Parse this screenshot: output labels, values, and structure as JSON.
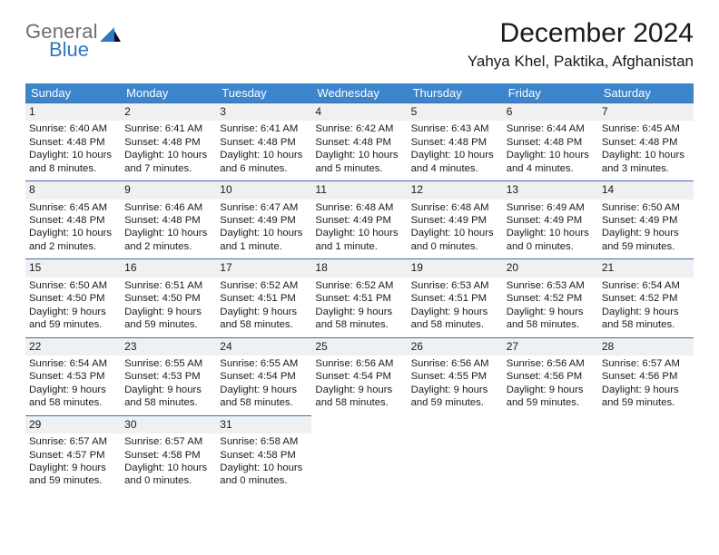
{
  "brand": {
    "line1": "General",
    "line2": "Blue"
  },
  "title": "December 2024",
  "location": "Yahya Khel, Paktika, Afghanistan",
  "colors": {
    "header_bg": "#3c84cc",
    "header_text": "#ffffff",
    "daynum_bg": "#eef0f1",
    "daynum_border": "#3c6fa3",
    "logo_blue": "#2f78c2",
    "logo_gray": "#6e6e6e"
  },
  "day_headers": [
    "Sunday",
    "Monday",
    "Tuesday",
    "Wednesday",
    "Thursday",
    "Friday",
    "Saturday"
  ],
  "days": [
    {
      "n": "1",
      "sunrise": "Sunrise: 6:40 AM",
      "sunset": "Sunset: 4:48 PM",
      "daylight": "Daylight: 10 hours and 8 minutes."
    },
    {
      "n": "2",
      "sunrise": "Sunrise: 6:41 AM",
      "sunset": "Sunset: 4:48 PM",
      "daylight": "Daylight: 10 hours and 7 minutes."
    },
    {
      "n": "3",
      "sunrise": "Sunrise: 6:41 AM",
      "sunset": "Sunset: 4:48 PM",
      "daylight": "Daylight: 10 hours and 6 minutes."
    },
    {
      "n": "4",
      "sunrise": "Sunrise: 6:42 AM",
      "sunset": "Sunset: 4:48 PM",
      "daylight": "Daylight: 10 hours and 5 minutes."
    },
    {
      "n": "5",
      "sunrise": "Sunrise: 6:43 AM",
      "sunset": "Sunset: 4:48 PM",
      "daylight": "Daylight: 10 hours and 4 minutes."
    },
    {
      "n": "6",
      "sunrise": "Sunrise: 6:44 AM",
      "sunset": "Sunset: 4:48 PM",
      "daylight": "Daylight: 10 hours and 4 minutes."
    },
    {
      "n": "7",
      "sunrise": "Sunrise: 6:45 AM",
      "sunset": "Sunset: 4:48 PM",
      "daylight": "Daylight: 10 hours and 3 minutes."
    },
    {
      "n": "8",
      "sunrise": "Sunrise: 6:45 AM",
      "sunset": "Sunset: 4:48 PM",
      "daylight": "Daylight: 10 hours and 2 minutes."
    },
    {
      "n": "9",
      "sunrise": "Sunrise: 6:46 AM",
      "sunset": "Sunset: 4:48 PM",
      "daylight": "Daylight: 10 hours and 2 minutes."
    },
    {
      "n": "10",
      "sunrise": "Sunrise: 6:47 AM",
      "sunset": "Sunset: 4:49 PM",
      "daylight": "Daylight: 10 hours and 1 minute."
    },
    {
      "n": "11",
      "sunrise": "Sunrise: 6:48 AM",
      "sunset": "Sunset: 4:49 PM",
      "daylight": "Daylight: 10 hours and 1 minute."
    },
    {
      "n": "12",
      "sunrise": "Sunrise: 6:48 AM",
      "sunset": "Sunset: 4:49 PM",
      "daylight": "Daylight: 10 hours and 0 minutes."
    },
    {
      "n": "13",
      "sunrise": "Sunrise: 6:49 AM",
      "sunset": "Sunset: 4:49 PM",
      "daylight": "Daylight: 10 hours and 0 minutes."
    },
    {
      "n": "14",
      "sunrise": "Sunrise: 6:50 AM",
      "sunset": "Sunset: 4:49 PM",
      "daylight": "Daylight: 9 hours and 59 minutes."
    },
    {
      "n": "15",
      "sunrise": "Sunrise: 6:50 AM",
      "sunset": "Sunset: 4:50 PM",
      "daylight": "Daylight: 9 hours and 59 minutes."
    },
    {
      "n": "16",
      "sunrise": "Sunrise: 6:51 AM",
      "sunset": "Sunset: 4:50 PM",
      "daylight": "Daylight: 9 hours and 59 minutes."
    },
    {
      "n": "17",
      "sunrise": "Sunrise: 6:52 AM",
      "sunset": "Sunset: 4:51 PM",
      "daylight": "Daylight: 9 hours and 58 minutes."
    },
    {
      "n": "18",
      "sunrise": "Sunrise: 6:52 AM",
      "sunset": "Sunset: 4:51 PM",
      "daylight": "Daylight: 9 hours and 58 minutes."
    },
    {
      "n": "19",
      "sunrise": "Sunrise: 6:53 AM",
      "sunset": "Sunset: 4:51 PM",
      "daylight": "Daylight: 9 hours and 58 minutes."
    },
    {
      "n": "20",
      "sunrise": "Sunrise: 6:53 AM",
      "sunset": "Sunset: 4:52 PM",
      "daylight": "Daylight: 9 hours and 58 minutes."
    },
    {
      "n": "21",
      "sunrise": "Sunrise: 6:54 AM",
      "sunset": "Sunset: 4:52 PM",
      "daylight": "Daylight: 9 hours and 58 minutes."
    },
    {
      "n": "22",
      "sunrise": "Sunrise: 6:54 AM",
      "sunset": "Sunset: 4:53 PM",
      "daylight": "Daylight: 9 hours and 58 minutes."
    },
    {
      "n": "23",
      "sunrise": "Sunrise: 6:55 AM",
      "sunset": "Sunset: 4:53 PM",
      "daylight": "Daylight: 9 hours and 58 minutes."
    },
    {
      "n": "24",
      "sunrise": "Sunrise: 6:55 AM",
      "sunset": "Sunset: 4:54 PM",
      "daylight": "Daylight: 9 hours and 58 minutes."
    },
    {
      "n": "25",
      "sunrise": "Sunrise: 6:56 AM",
      "sunset": "Sunset: 4:54 PM",
      "daylight": "Daylight: 9 hours and 58 minutes."
    },
    {
      "n": "26",
      "sunrise": "Sunrise: 6:56 AM",
      "sunset": "Sunset: 4:55 PM",
      "daylight": "Daylight: 9 hours and 59 minutes."
    },
    {
      "n": "27",
      "sunrise": "Sunrise: 6:56 AM",
      "sunset": "Sunset: 4:56 PM",
      "daylight": "Daylight: 9 hours and 59 minutes."
    },
    {
      "n": "28",
      "sunrise": "Sunrise: 6:57 AM",
      "sunset": "Sunset: 4:56 PM",
      "daylight": "Daylight: 9 hours and 59 minutes."
    },
    {
      "n": "29",
      "sunrise": "Sunrise: 6:57 AM",
      "sunset": "Sunset: 4:57 PM",
      "daylight": "Daylight: 9 hours and 59 minutes."
    },
    {
      "n": "30",
      "sunrise": "Sunrise: 6:57 AM",
      "sunset": "Sunset: 4:58 PM",
      "daylight": "Daylight: 10 hours and 0 minutes."
    },
    {
      "n": "31",
      "sunrise": "Sunrise: 6:58 AM",
      "sunset": "Sunset: 4:58 PM",
      "daylight": "Daylight: 10 hours and 0 minutes."
    }
  ]
}
